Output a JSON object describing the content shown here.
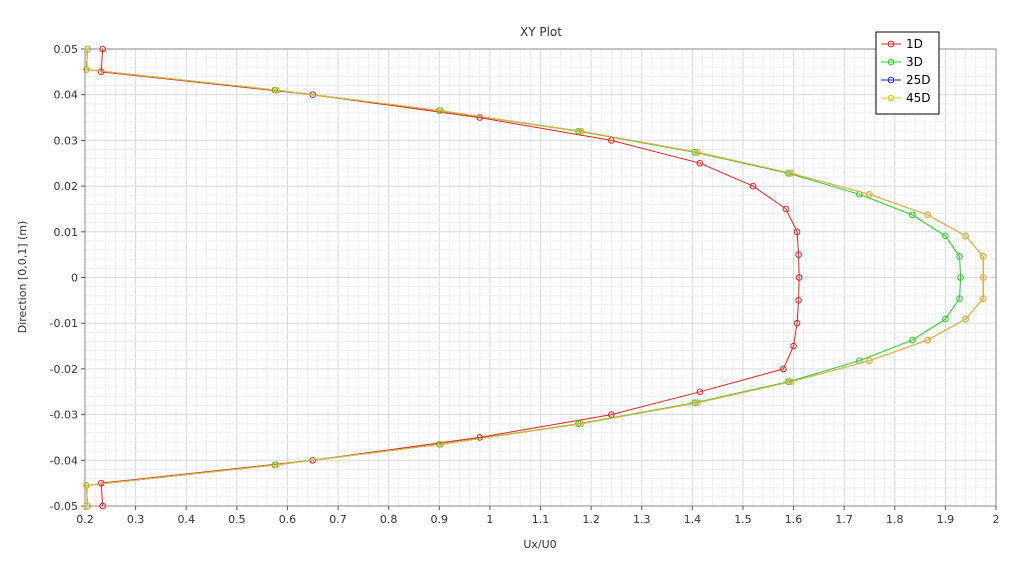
{
  "chart_data": {
    "type": "line",
    "title": "XY Plot",
    "xlabel": "Ux/U0",
    "ylabel": "Direction [0,0,1] (m)",
    "xlim": [
      0.2,
      2.0
    ],
    "ylim": [
      -0.05,
      0.05
    ],
    "x_ticks": [
      "0.2",
      "0.3",
      "0.4",
      "0.5",
      "0.6",
      "0.7",
      "0.8",
      "0.9",
      "1",
      "1.1",
      "1.2",
      "1.3",
      "1.4",
      "1.5",
      "1.6",
      "1.7",
      "1.8",
      "1.9",
      "2"
    ],
    "y_ticks": [
      "0.05",
      "0.04",
      "0.03",
      "0.02",
      "0.01",
      "0",
      "-0.01",
      "-0.02",
      "-0.03",
      "-0.04",
      "-0.05"
    ],
    "grid": true,
    "legend_position": "top-right",
    "series": [
      {
        "name": "1D",
        "color": "#e02020",
        "points": [
          [
            0.235,
            0.05
          ],
          [
            0.232,
            0.045
          ],
          [
            0.65,
            0.04
          ],
          [
            0.98,
            0.035
          ],
          [
            1.24,
            0.03
          ],
          [
            1.415,
            0.025
          ],
          [
            1.52,
            0.02
          ],
          [
            1.585,
            0.015
          ],
          [
            1.607,
            0.01
          ],
          [
            1.61,
            0.005
          ],
          [
            1.611,
            0
          ],
          [
            1.61,
            -0.005
          ],
          [
            1.607,
            -0.01
          ],
          [
            1.6,
            -0.015
          ],
          [
            1.58,
            -0.02
          ],
          [
            1.415,
            -0.025
          ],
          [
            1.24,
            -0.03
          ],
          [
            0.98,
            -0.035
          ],
          [
            0.65,
            -0.04
          ],
          [
            0.232,
            -0.045
          ],
          [
            0.235,
            -0.05
          ]
        ]
      },
      {
        "name": "3D",
        "color": "#22cc22",
        "points": [
          [
            0.205,
            0.05
          ],
          [
            0.203,
            0.0455
          ],
          [
            0.575,
            0.041
          ],
          [
            0.9,
            0.0365
          ],
          [
            1.175,
            0.032
          ],
          [
            1.405,
            0.0274
          ],
          [
            1.59,
            0.0228
          ],
          [
            1.73,
            0.0182
          ],
          [
            1.835,
            0.0137
          ],
          [
            1.9,
            0.0091
          ],
          [
            1.928,
            0.0046
          ],
          [
            1.93,
            0
          ],
          [
            1.928,
            -0.0046
          ],
          [
            1.9,
            -0.0091
          ],
          [
            1.835,
            -0.0137
          ],
          [
            1.73,
            -0.0182
          ],
          [
            1.59,
            -0.0228
          ],
          [
            1.405,
            -0.0274
          ],
          [
            1.175,
            -0.032
          ],
          [
            0.9,
            -0.0365
          ],
          [
            0.575,
            -0.041
          ],
          [
            0.203,
            -0.0455
          ],
          [
            0.205,
            -0.05
          ]
        ]
      },
      {
        "name": "25D",
        "color": "#2222cc",
        "points": [
          [
            0.205,
            0.05
          ],
          [
            0.203,
            0.0455
          ],
          [
            0.578,
            0.041
          ],
          [
            0.903,
            0.0365
          ],
          [
            1.18,
            0.032
          ],
          [
            1.41,
            0.0274
          ],
          [
            1.595,
            0.0228
          ],
          [
            1.75,
            0.0182
          ],
          [
            1.865,
            0.0137
          ],
          [
            1.94,
            0.0091
          ],
          [
            1.975,
            0.0046
          ],
          [
            1.975,
            0
          ],
          [
            1.975,
            -0.0046
          ],
          [
            1.94,
            -0.0091
          ],
          [
            1.865,
            -0.0137
          ],
          [
            1.75,
            -0.0182
          ],
          [
            1.595,
            -0.0228
          ],
          [
            1.41,
            -0.0274
          ],
          [
            1.18,
            -0.032
          ],
          [
            0.903,
            -0.0365
          ],
          [
            0.578,
            -0.041
          ],
          [
            0.203,
            -0.0455
          ],
          [
            0.205,
            -0.05
          ]
        ]
      },
      {
        "name": "45D",
        "color": "#f0c020",
        "points": [
          [
            0.205,
            0.05
          ],
          [
            0.203,
            0.0455
          ],
          [
            0.578,
            0.041
          ],
          [
            0.903,
            0.0365
          ],
          [
            1.18,
            0.032
          ],
          [
            1.41,
            0.0274
          ],
          [
            1.595,
            0.0228
          ],
          [
            1.75,
            0.0182
          ],
          [
            1.865,
            0.0137
          ],
          [
            1.94,
            0.0091
          ],
          [
            1.975,
            0.0046
          ],
          [
            1.975,
            0
          ],
          [
            1.975,
            -0.0046
          ],
          [
            1.94,
            -0.0091
          ],
          [
            1.865,
            -0.0137
          ],
          [
            1.75,
            -0.0182
          ],
          [
            1.595,
            -0.0228
          ],
          [
            1.41,
            -0.0274
          ],
          [
            1.18,
            -0.032
          ],
          [
            0.903,
            -0.0365
          ],
          [
            0.578,
            -0.041
          ],
          [
            0.203,
            -0.0455
          ],
          [
            0.205,
            -0.05
          ]
        ]
      }
    ]
  }
}
